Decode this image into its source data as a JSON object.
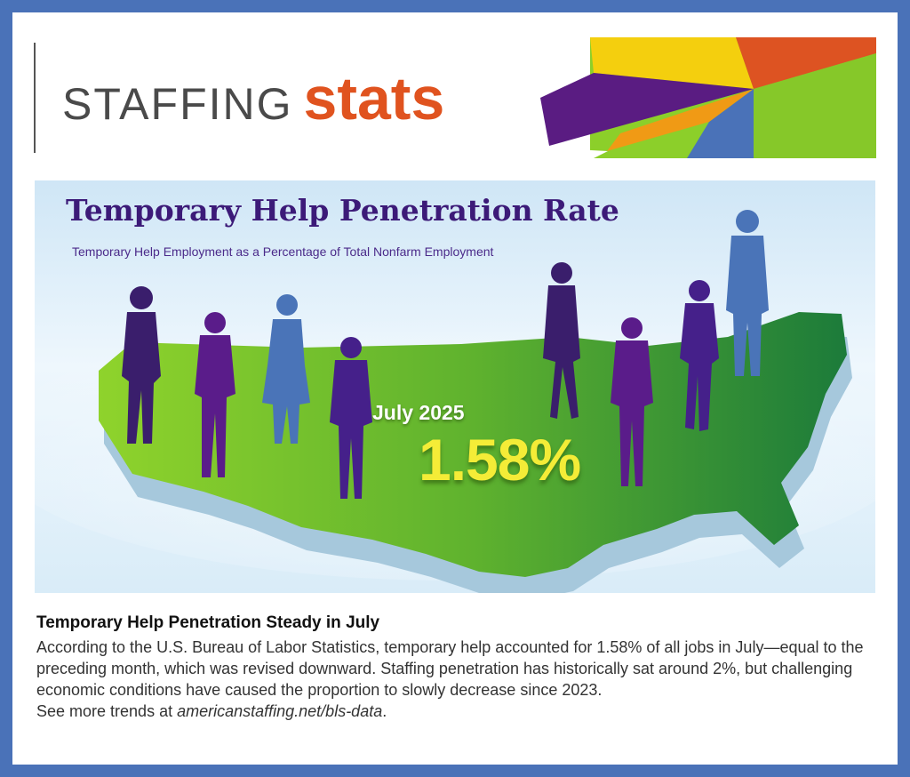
{
  "header": {
    "brand_word1": "STAFFING",
    "brand_word2": "stats"
  },
  "infographic": {
    "title": "Temporary Help Penetration Rate",
    "subtitle": "Temporary Help Employment as a Percentage of Total Nonfarm Employment",
    "date_label": "July 2025",
    "value_label": "1.58%"
  },
  "article": {
    "heading": "Temporary Help Penetration Steady in July",
    "body": "According to the U.S. Bureau of Labor Statistics, temporary help accounted for 1.58% of all jobs in July—equal to the preceding month, which was revised downward. Staffing penetration has historically sat around 2%, but challenging economic conditions have caused the proportion to slowly decrease since 2023.",
    "link_prefix": "See more trends at ",
    "link_text": "americanstaffing.net/bls-data",
    "link_suffix": "."
  },
  "colors": {
    "border": "#4a72b8",
    "brand_orange": "#e0531f",
    "title_purple": "#3c1a78",
    "value_yellow": "#f4ec37",
    "map_green_light": "#8ccf2a",
    "map_green_dark": "#1e7a3a"
  },
  "icons": [
    "color-burst-graphic",
    "us-map-graphic",
    "person-silhouette-icon"
  ]
}
